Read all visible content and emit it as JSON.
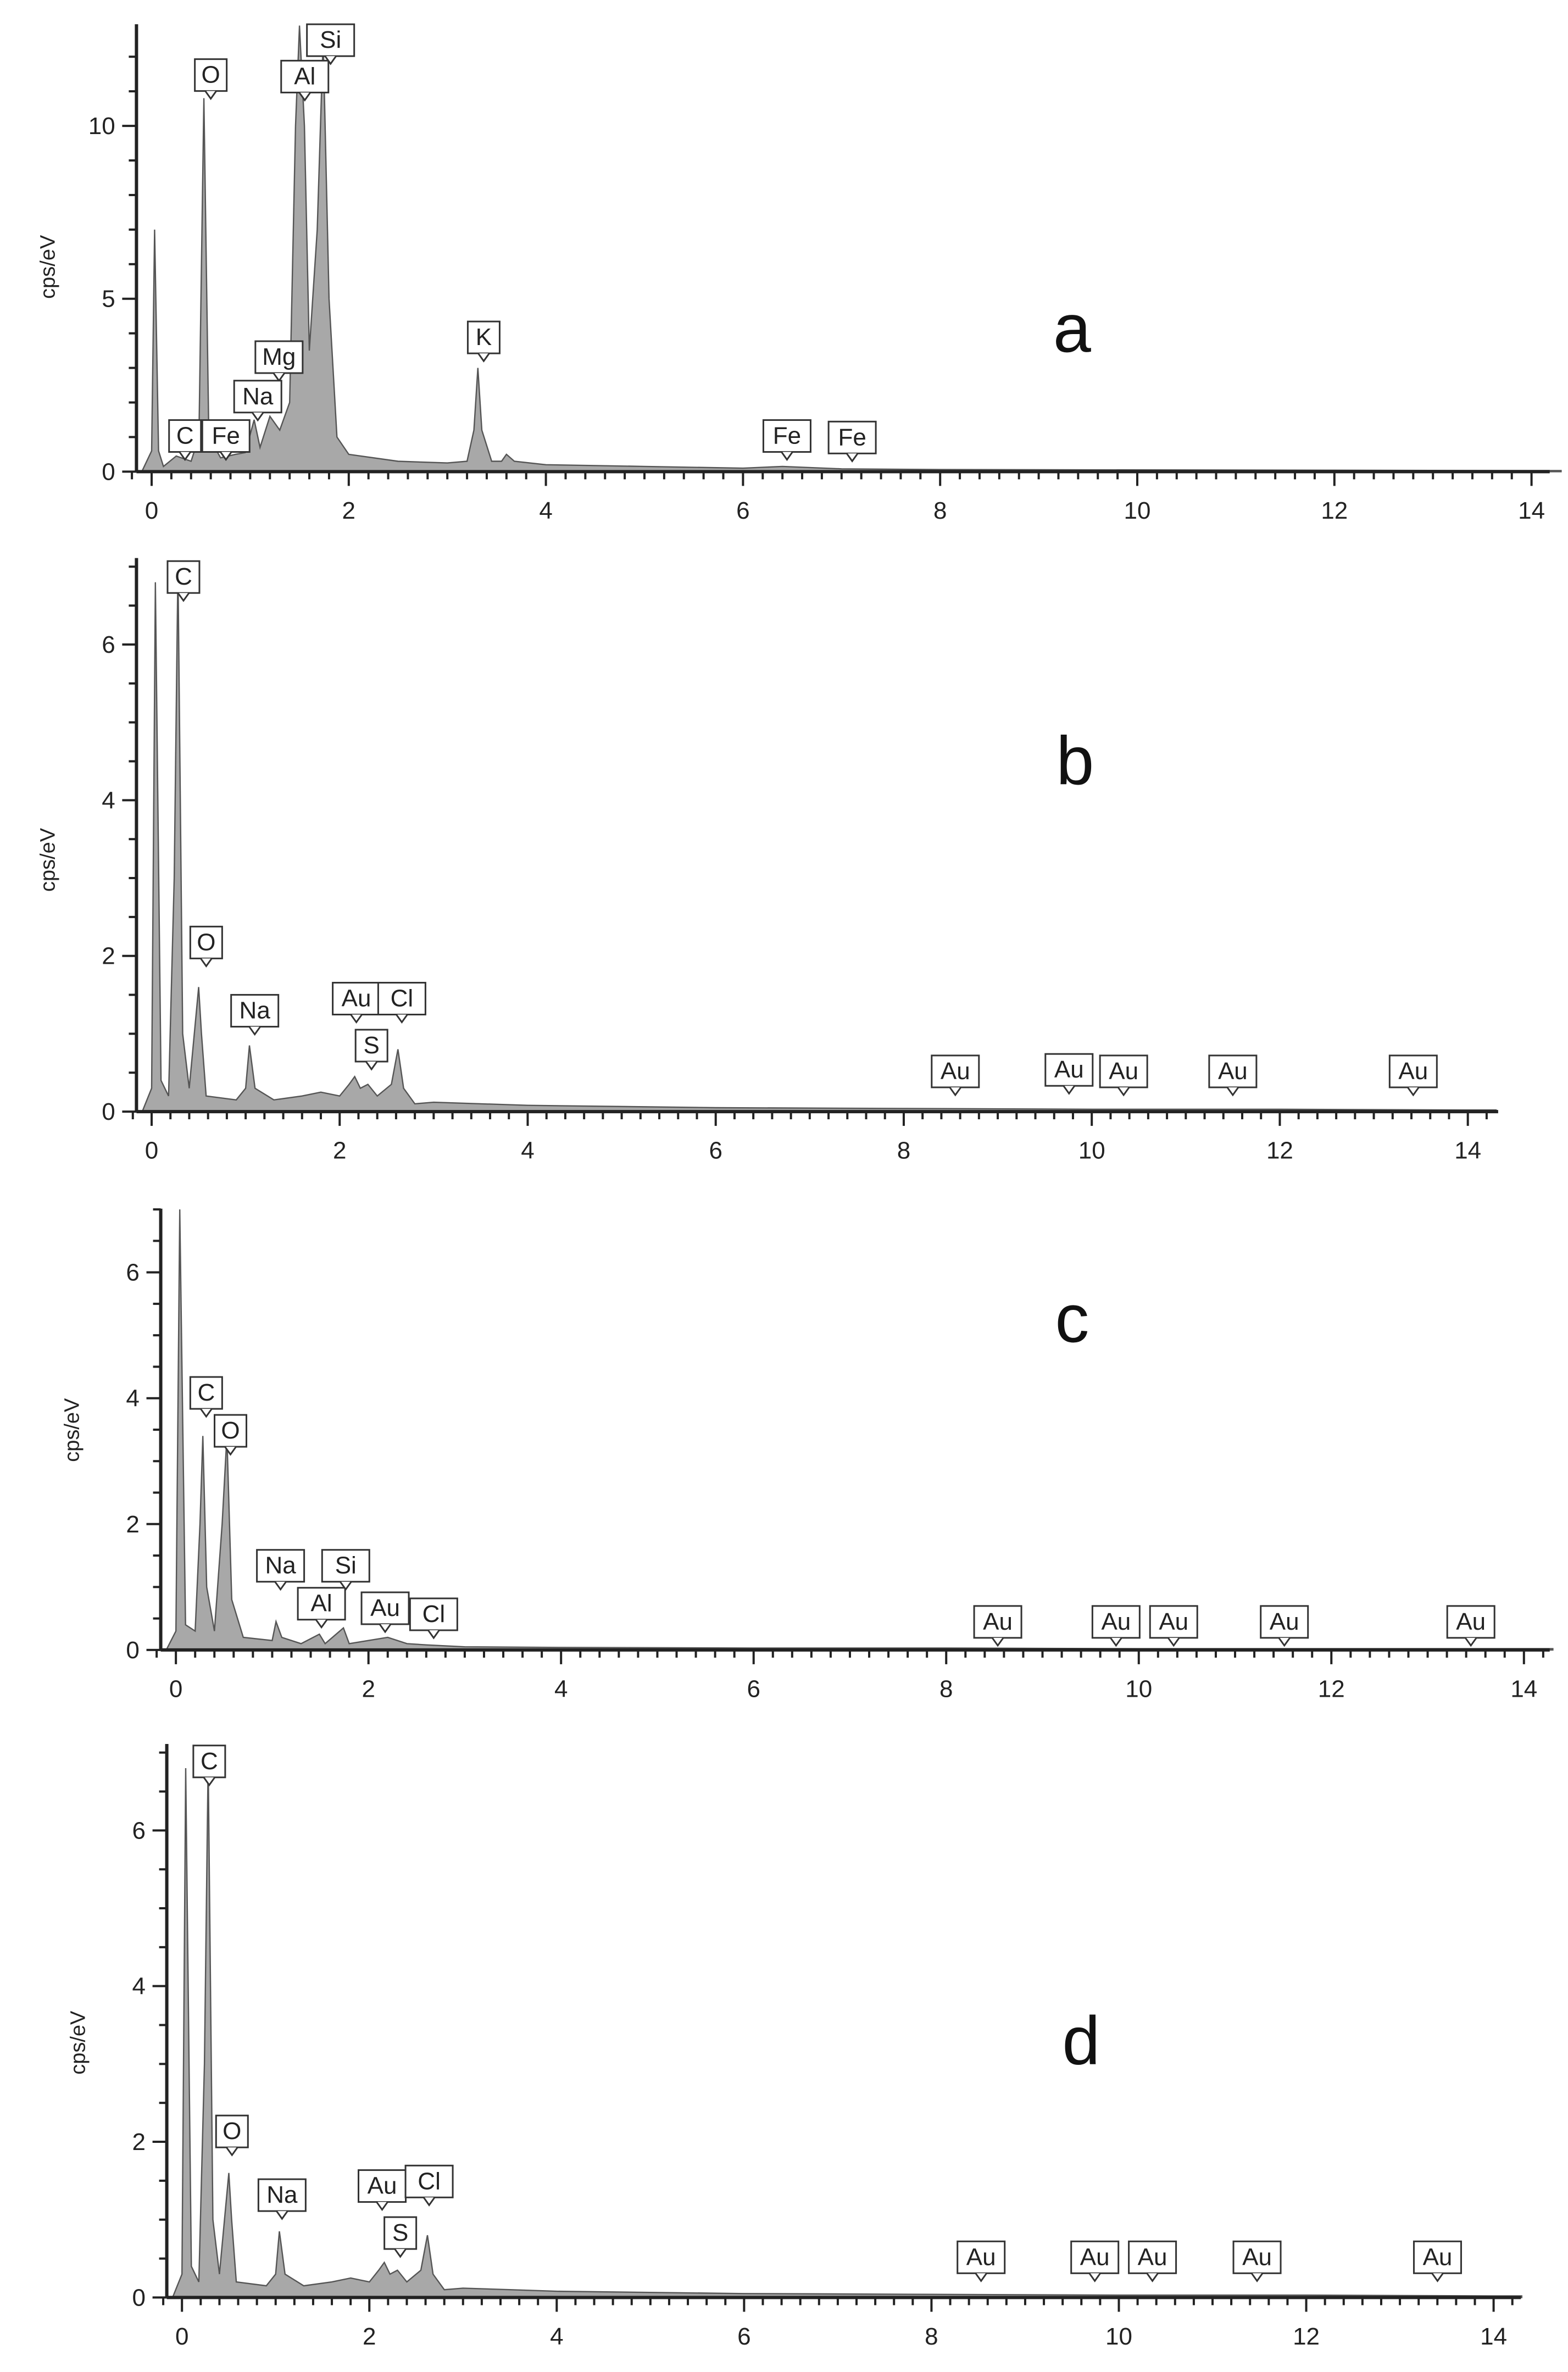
{
  "chart_data": [
    {
      "type": "area",
      "panel_label": "a",
      "ylabel": "cps/eV",
      "xlim": [
        0,
        14
      ],
      "ylim": [
        0,
        13
      ],
      "x_ticks": [
        "0",
        "2",
        "4",
        "6",
        "8",
        "10",
        "12",
        "14"
      ],
      "y_ticks": [
        "0",
        "5",
        "10"
      ],
      "fill_color": "#a8a8a8",
      "grid": false,
      "series": [
        {
          "points": [
            [
              -0.1,
              0
            ],
            [
              0,
              0.6
            ],
            [
              0.03,
              7.0
            ],
            [
              0.07,
              0.6
            ],
            [
              0.12,
              0.15
            ],
            [
              0.25,
              0.45
            ],
            [
              0.4,
              0.3
            ],
            [
              0.48,
              1.0
            ],
            [
              0.53,
              10.8
            ],
            [
              0.58,
              1.0
            ],
            [
              0.7,
              0.4
            ],
            [
              0.85,
              0.5
            ],
            [
              0.95,
              0.55
            ],
            [
              1.04,
              1.5
            ],
            [
              1.1,
              0.7
            ],
            [
              1.2,
              1.6
            ],
            [
              1.3,
              1.2
            ],
            [
              1.4,
              2.0
            ],
            [
              1.46,
              10.0
            ],
            [
              1.5,
              12.9
            ],
            [
              1.55,
              10.0
            ],
            [
              1.6,
              3.5
            ],
            [
              1.68,
              7.0
            ],
            [
              1.74,
              12.5
            ],
            [
              1.8,
              5.0
            ],
            [
              1.88,
              1.0
            ],
            [
              2.0,
              0.5
            ],
            [
              2.5,
              0.3
            ],
            [
              3.0,
              0.25
            ],
            [
              3.2,
              0.3
            ],
            [
              3.27,
              1.2
            ],
            [
              3.31,
              3.0
            ],
            [
              3.35,
              1.2
            ],
            [
              3.45,
              0.3
            ],
            [
              3.55,
              0.3
            ],
            [
              3.6,
              0.5
            ],
            [
              3.68,
              0.3
            ],
            [
              4.0,
              0.2
            ],
            [
              5.0,
              0.15
            ],
            [
              6.0,
              0.1
            ],
            [
              6.4,
              0.15
            ],
            [
              7.0,
              0.08
            ],
            [
              8.0,
              0.06
            ],
            [
              10.0,
              0.05
            ],
            [
              12.0,
              0.04
            ],
            [
              14.0,
              0.03
            ],
            [
              14.3,
              0.03
            ]
          ]
        }
      ],
      "peak_labels": [
        {
          "text": "O",
          "x": 0.52,
          "y": 10.8
        },
        {
          "text": "Al",
          "x": 1.49,
          "y": 12.7
        },
        {
          "text": "Si",
          "x": 1.75,
          "y": 12.5
        },
        {
          "text": "K",
          "x": 3.31,
          "y": 3.0
        },
        {
          "text": "Mg",
          "x": 1.25,
          "y": 2.0
        },
        {
          "text": "Na",
          "x": 1.04,
          "y": 1.4
        },
        {
          "text": "C",
          "x": 0.27,
          "y": 0.15
        },
        {
          "text": "Fe",
          "x": 0.71,
          "y": 0.3
        },
        {
          "text": "Fe",
          "x": 6.4,
          "y": 0.15
        },
        {
          "text": "Fe",
          "x": 7.06,
          "y": 0.1
        }
      ]
    },
    {
      "type": "area",
      "panel_label": "b",
      "ylabel": "cps/eV",
      "xlim": [
        0,
        14
      ],
      "ylim": [
        0,
        7
      ],
      "x_ticks": [
        "0",
        "2",
        "4",
        "6",
        "8",
        "10",
        "12",
        "14"
      ],
      "y_ticks": [
        "0",
        "2",
        "4",
        "6"
      ],
      "fill_color": "#a8a8a8",
      "grid": false,
      "series": [
        {
          "points": [
            [
              -0.1,
              0
            ],
            [
              0,
              0.3
            ],
            [
              0.04,
              6.8
            ],
            [
              0.1,
              0.4
            ],
            [
              0.18,
              0.2
            ],
            [
              0.24,
              3.0
            ],
            [
              0.28,
              7.0
            ],
            [
              0.33,
              1.0
            ],
            [
              0.4,
              0.3
            ],
            [
              0.5,
              1.6
            ],
            [
              0.53,
              1.0
            ],
            [
              0.58,
              0.2
            ],
            [
              0.9,
              0.15
            ],
            [
              1.0,
              0.3
            ],
            [
              1.04,
              0.85
            ],
            [
              1.1,
              0.3
            ],
            [
              1.3,
              0.15
            ],
            [
              1.6,
              0.2
            ],
            [
              1.8,
              0.25
            ],
            [
              2.0,
              0.2
            ],
            [
              2.1,
              0.35
            ],
            [
              2.16,
              0.45
            ],
            [
              2.22,
              0.3
            ],
            [
              2.3,
              0.35
            ],
            [
              2.4,
              0.2
            ],
            [
              2.55,
              0.35
            ],
            [
              2.62,
              0.8
            ],
            [
              2.68,
              0.3
            ],
            [
              2.8,
              0.1
            ],
            [
              3.0,
              0.12
            ],
            [
              3.5,
              0.1
            ],
            [
              4.0,
              0.08
            ],
            [
              6.0,
              0.05
            ],
            [
              8.0,
              0.04
            ],
            [
              10.0,
              0.03
            ],
            [
              12.0,
              0.03
            ],
            [
              14.0,
              0.02
            ],
            [
              14.3,
              0.02
            ]
          ]
        }
      ],
      "peak_labels": [
        {
          "text": "C",
          "x": 0.28,
          "y": 7.0
        },
        {
          "text": "O",
          "x": 0.52,
          "y": 1.6
        },
        {
          "text": "Na",
          "x": 1.04,
          "y": 0.85
        },
        {
          "text": "Au",
          "x": 2.12,
          "y": 0.4
        },
        {
          "text": "S",
          "x": 2.31,
          "y": 0.35
        },
        {
          "text": "Cl",
          "x": 2.62,
          "y": 0.8
        },
        {
          "text": "Au",
          "x": 8.49,
          "y": 0.04
        },
        {
          "text": "Au",
          "x": 9.71,
          "y": 0.03
        },
        {
          "text": "Au",
          "x": 10.31,
          "y": 0.03
        },
        {
          "text": "Au",
          "x": 11.44,
          "y": 0.03
        },
        {
          "text": "Au",
          "x": 13.38,
          "y": 0.02
        }
      ]
    },
    {
      "type": "area",
      "panel_label": "c",
      "ylabel": "cps/eV",
      "xlim": [
        0,
        14
      ],
      "ylim": [
        0,
        7
      ],
      "x_ticks": [
        "0",
        "2",
        "4",
        "6",
        "8",
        "10",
        "12",
        "14"
      ],
      "y_ticks": [
        "0",
        "2",
        "4",
        "6"
      ],
      "fill_color": "#a8a8a8",
      "grid": false,
      "series": [
        {
          "points": [
            [
              -0.1,
              0
            ],
            [
              0,
              0.3
            ],
            [
              0.04,
              7.0
            ],
            [
              0.1,
              0.4
            ],
            [
              0.2,
              0.3
            ],
            [
              0.25,
              2.0
            ],
            [
              0.28,
              3.4
            ],
            [
              0.32,
              1.0
            ],
            [
              0.4,
              0.3
            ],
            [
              0.48,
              2.0
            ],
            [
              0.53,
              3.4
            ],
            [
              0.58,
              0.8
            ],
            [
              0.7,
              0.2
            ],
            [
              1.0,
              0.15
            ],
            [
              1.04,
              0.45
            ],
            [
              1.1,
              0.2
            ],
            [
              1.3,
              0.1
            ],
            [
              1.49,
              0.25
            ],
            [
              1.55,
              0.1
            ],
            [
              1.74,
              0.35
            ],
            [
              1.8,
              0.1
            ],
            [
              2.0,
              0.15
            ],
            [
              2.2,
              0.2
            ],
            [
              2.4,
              0.1
            ],
            [
              2.6,
              0.08
            ],
            [
              3.0,
              0.05
            ],
            [
              4.0,
              0.04
            ],
            [
              6.0,
              0.03
            ],
            [
              8.0,
              0.03
            ],
            [
              10.0,
              0.02
            ],
            [
              14.0,
              0.02
            ],
            [
              14.3,
              0.02
            ]
          ]
        }
      ],
      "peak_labels": [
        {
          "text": "C",
          "x": 0.27,
          "y": 3.4
        },
        {
          "text": "O",
          "x": 0.52,
          "y": 3.4
        },
        {
          "text": "Na",
          "x": 1.04,
          "y": 0.45
        },
        {
          "text": "Al",
          "x": 1.49,
          "y": 0.25
        },
        {
          "text": "Si",
          "x": 1.74,
          "y": 0.35
        },
        {
          "text": "Au",
          "x": 2.12,
          "y": 0.2
        },
        {
          "text": "Cl",
          "x": 2.62,
          "y": 0.08
        },
        {
          "text": "Au",
          "x": 8.49,
          "y": 0.03
        },
        {
          "text": "Au",
          "x": 9.71,
          "y": 0.02
        },
        {
          "text": "Au",
          "x": 10.31,
          "y": 0.02
        },
        {
          "text": "Au",
          "x": 11.44,
          "y": 0.02
        },
        {
          "text": "Au",
          "x": 13.38,
          "y": 0.02
        }
      ]
    },
    {
      "type": "area",
      "panel_label": "d",
      "ylabel": "cps/eV",
      "xlim": [
        0,
        14
      ],
      "ylim": [
        0,
        7
      ],
      "x_ticks": [
        "0",
        "2",
        "4",
        "6",
        "8",
        "10",
        "12",
        "14"
      ],
      "y_ticks": [
        "0",
        "2",
        "4",
        "6"
      ],
      "fill_color": "#a8a8a8",
      "grid": false,
      "series": [
        {
          "points": [
            [
              -0.1,
              0
            ],
            [
              0,
              0.3
            ],
            [
              0.04,
              6.8
            ],
            [
              0.1,
              0.4
            ],
            [
              0.18,
              0.2
            ],
            [
              0.24,
              3.0
            ],
            [
              0.28,
              6.9
            ],
            [
              0.33,
              1.0
            ],
            [
              0.4,
              0.3
            ],
            [
              0.5,
              1.6
            ],
            [
              0.53,
              1.0
            ],
            [
              0.58,
              0.2
            ],
            [
              0.9,
              0.15
            ],
            [
              1.0,
              0.3
            ],
            [
              1.04,
              0.85
            ],
            [
              1.1,
              0.3
            ],
            [
              1.3,
              0.15
            ],
            [
              1.6,
              0.2
            ],
            [
              1.8,
              0.25
            ],
            [
              2.0,
              0.2
            ],
            [
              2.1,
              0.35
            ],
            [
              2.16,
              0.45
            ],
            [
              2.22,
              0.3
            ],
            [
              2.3,
              0.35
            ],
            [
              2.4,
              0.2
            ],
            [
              2.55,
              0.35
            ],
            [
              2.62,
              0.8
            ],
            [
              2.68,
              0.3
            ],
            [
              2.8,
              0.1
            ],
            [
              3.0,
              0.12
            ],
            [
              3.5,
              0.1
            ],
            [
              4.0,
              0.08
            ],
            [
              6.0,
              0.05
            ],
            [
              8.0,
              0.04
            ],
            [
              10.0,
              0.03
            ],
            [
              12.0,
              0.03
            ],
            [
              14.0,
              0.02
            ],
            [
              14.3,
              0.02
            ]
          ]
        }
      ],
      "peak_labels": [
        {
          "text": "C",
          "x": 0.28,
          "y": 6.9
        },
        {
          "text": "O",
          "x": 0.52,
          "y": 1.6
        },
        {
          "text": "Na",
          "x": 1.04,
          "y": 0.85
        },
        {
          "text": "Au",
          "x": 2.12,
          "y": 0.4
        },
        {
          "text": "S",
          "x": 2.31,
          "y": 0.35
        },
        {
          "text": "Cl",
          "x": 2.62,
          "y": 0.8
        },
        {
          "text": "Au",
          "x": 8.49,
          "y": 0.04
        },
        {
          "text": "Au",
          "x": 9.71,
          "y": 0.03
        },
        {
          "text": "Au",
          "x": 10.31,
          "y": 0.03
        },
        {
          "text": "Au",
          "x": 11.44,
          "y": 0.03
        },
        {
          "text": "Au",
          "x": 13.38,
          "y": 0.02
        }
      ]
    }
  ]
}
